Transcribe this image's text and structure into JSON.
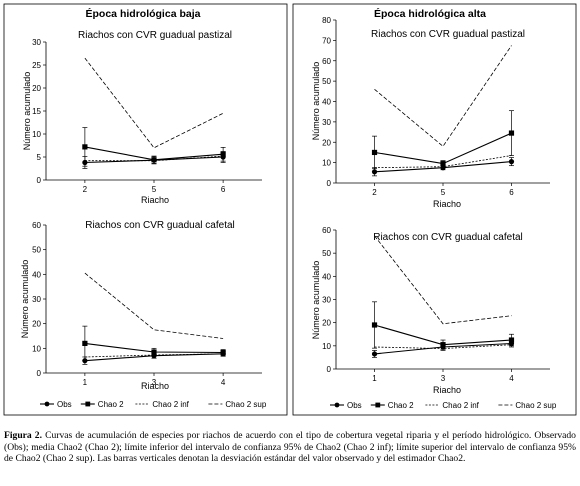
{
  "columns": [
    {
      "title": "Época hidrológica baja"
    },
    {
      "title": "Época hidrológica alta"
    }
  ],
  "legend": {
    "items": [
      {
        "label": "Obs",
        "style": "obs"
      },
      {
        "label": "Chao 2",
        "style": "chao"
      },
      {
        "label": "Chao 2 inf",
        "style": "inf"
      },
      {
        "label": "Chao 2 sup",
        "style": "sup"
      }
    ]
  },
  "caption": {
    "label": "Figura 2.",
    "text": "Curvas de acumulación de especies por riachos de acuerdo con el tipo de cobertura vegetal riparia y el período hidrológico. Observado (Obs); media Chao2 (Chao 2); límite inferior del intervalo de confianza 95% de Chao2 (Chao 2 inf); límite superior del intervalo de confianza 95% de Chao2 (Chao 2 sup). Las barras verticales denotan la desviación estándar del valor observado y del estimador Chao2."
  },
  "chart_data": [
    {
      "type": "line",
      "title": "Riachos con CVR guadual pastizal",
      "xlabel": "Riacho",
      "ylabel": "Número acumulado",
      "categories": [
        "2",
        "5",
        "6"
      ],
      "ylim": [
        0,
        30
      ],
      "yticks": [
        0,
        5,
        10,
        15,
        20,
        25,
        30
      ],
      "series": [
        {
          "name": "Obs",
          "values": [
            3.8,
            4.3,
            5.0
          ],
          "error": [
            1.3,
            0.8,
            1.2
          ]
        },
        {
          "name": "Chao 2",
          "values": [
            7.2,
            4.4,
            5.6
          ],
          "error": [
            4.2,
            0.8,
            1.5
          ]
        },
        {
          "name": "Chao 2 inf",
          "values": [
            4.2,
            4.2,
            5.2
          ]
        },
        {
          "name": "Chao 2 sup",
          "values": [
            26.5,
            7.0,
            14.5
          ]
        }
      ]
    },
    {
      "type": "line",
      "title": "Riachos con CVR guadual pastizal",
      "xlabel": "Riacho",
      "ylabel": "Número acumulado",
      "categories": [
        "2",
        "5",
        "6"
      ],
      "ylim": [
        0,
        80
      ],
      "yticks": [
        0,
        10,
        20,
        30,
        40,
        50,
        60,
        70,
        80
      ],
      "series": [
        {
          "name": "Obs",
          "values": [
            5.5,
            7.5,
            10.5
          ],
          "error": [
            2,
            1,
            2
          ]
        },
        {
          "name": "Chao 2",
          "values": [
            15,
            9.5,
            24.5
          ],
          "error": [
            8,
            1.5,
            11
          ]
        },
        {
          "name": "Chao 2 inf",
          "values": [
            7.5,
            8,
            13.5
          ]
        },
        {
          "name": "Chao 2 sup",
          "values": [
            46,
            18,
            67.5
          ]
        }
      ]
    },
    {
      "type": "line",
      "title": "Riachos con CVR guadual cafetal",
      "xlabel": "Riacho",
      "ylabel": "Número acumulado",
      "categories": [
        "1",
        "3",
        "4"
      ],
      "ylim": [
        0,
        60
      ],
      "yticks": [
        0,
        10,
        20,
        30,
        40,
        50,
        60
      ],
      "series": [
        {
          "name": "Obs",
          "values": [
            5,
            7,
            7.8
          ],
          "error": [
            1.5,
            1,
            1
          ]
        },
        {
          "name": "Chao 2",
          "values": [
            12,
            8.5,
            8.3
          ],
          "error": [
            7,
            1.5,
            1.2
          ]
        },
        {
          "name": "Chao 2 inf",
          "values": [
            6.5,
            7.3,
            7.8
          ]
        },
        {
          "name": "Chao 2 sup",
          "values": [
            40.5,
            17.5,
            14
          ]
        }
      ]
    },
    {
      "type": "line",
      "title": "Riachos con CVR guadual cafetal",
      "xlabel": "Riacho",
      "ylabel": "Número acumulado",
      "categories": [
        "1",
        "3",
        "4"
      ],
      "ylim": [
        0,
        60
      ],
      "yticks": [
        0,
        10,
        20,
        30,
        40,
        50,
        60
      ],
      "series": [
        {
          "name": "Obs",
          "values": [
            6.5,
            9.5,
            11
          ],
          "error": [
            1.5,
            1.5,
            1.5
          ]
        },
        {
          "name": "Chao 2",
          "values": [
            19,
            10.5,
            12.5
          ],
          "error": [
            10,
            2,
            2.5
          ]
        },
        {
          "name": "Chao 2 inf",
          "values": [
            9.5,
            8.8,
            10.5
          ]
        },
        {
          "name": "Chao 2 sup",
          "values": [
            57.5,
            19.5,
            23
          ]
        }
      ]
    }
  ]
}
